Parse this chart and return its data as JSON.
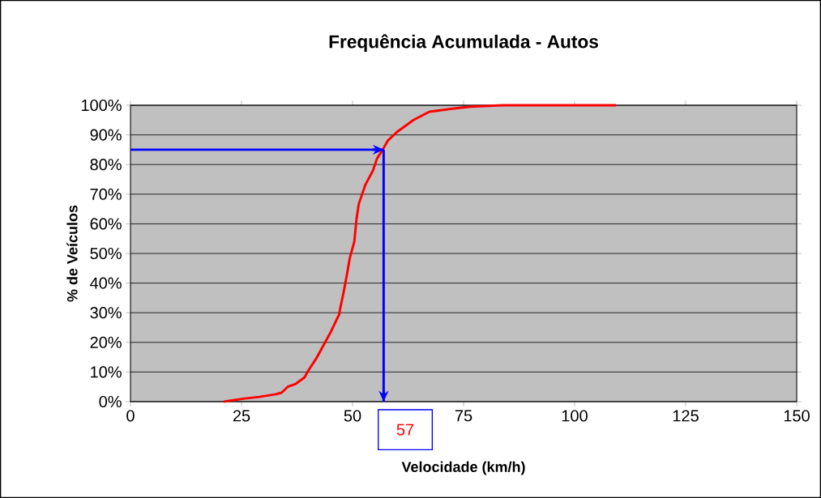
{
  "chart_data": {
    "type": "line",
    "title": "Frequência Acumulada - Autos",
    "xlabel": "Velocidade (km/h)",
    "ylabel": "% de Veículos",
    "x": [
      21,
      25.4,
      29,
      32.7,
      34,
      35.4,
      37.2,
      39.2,
      40,
      41.8,
      43.3,
      45.1,
      47,
      47.3,
      48,
      48.7,
      49.4,
      50.4,
      50.9,
      51.4,
      52.9,
      54.6,
      55.5,
      56.8,
      57.9,
      60,
      63.7,
      67.3,
      72.8,
      76.5,
      83.8,
      109.3
    ],
    "series": [
      {
        "color": "#ff0000",
        "values": [
          0,
          1,
          1.6,
          2.5,
          3,
          5,
          6,
          8.2,
          10.4,
          14.5,
          18.6,
          23.5,
          29.5,
          32,
          37,
          42.6,
          48.6,
          54,
          61.7,
          66.7,
          73.2,
          78,
          82,
          85,
          88,
          91,
          95,
          97.8,
          98.9,
          99.5,
          100,
          100
        ]
      }
    ],
    "xlim": [
      0,
      150
    ],
    "xticks": [
      0,
      25,
      50,
      75,
      100,
      125,
      150
    ],
    "ylim": [
      0,
      100
    ],
    "yticks": [
      {
        "value": 0,
        "label": "0%"
      },
      {
        "value": 10,
        "label": "10%"
      },
      {
        "value": 20,
        "label": "20%"
      },
      {
        "value": 30,
        "label": "30%"
      },
      {
        "value": 40,
        "label": "40%"
      },
      {
        "value": 50,
        "label": "50%"
      },
      {
        "value": 60,
        "label": "60%"
      },
      {
        "value": 70,
        "label": "70%"
      },
      {
        "value": 80,
        "label": "80%"
      },
      {
        "value": 90,
        "label": "90%"
      },
      {
        "value": 100,
        "label": "100%"
      }
    ],
    "grid": "y",
    "marker": "none",
    "line_style": "solid",
    "ref_lines": [
      {
        "axis": "x",
        "value": 57,
        "label": "57",
        "color": "#0000ff"
      },
      {
        "axis": "y",
        "value": 85,
        "color": "#0000ff"
      }
    ]
  }
}
